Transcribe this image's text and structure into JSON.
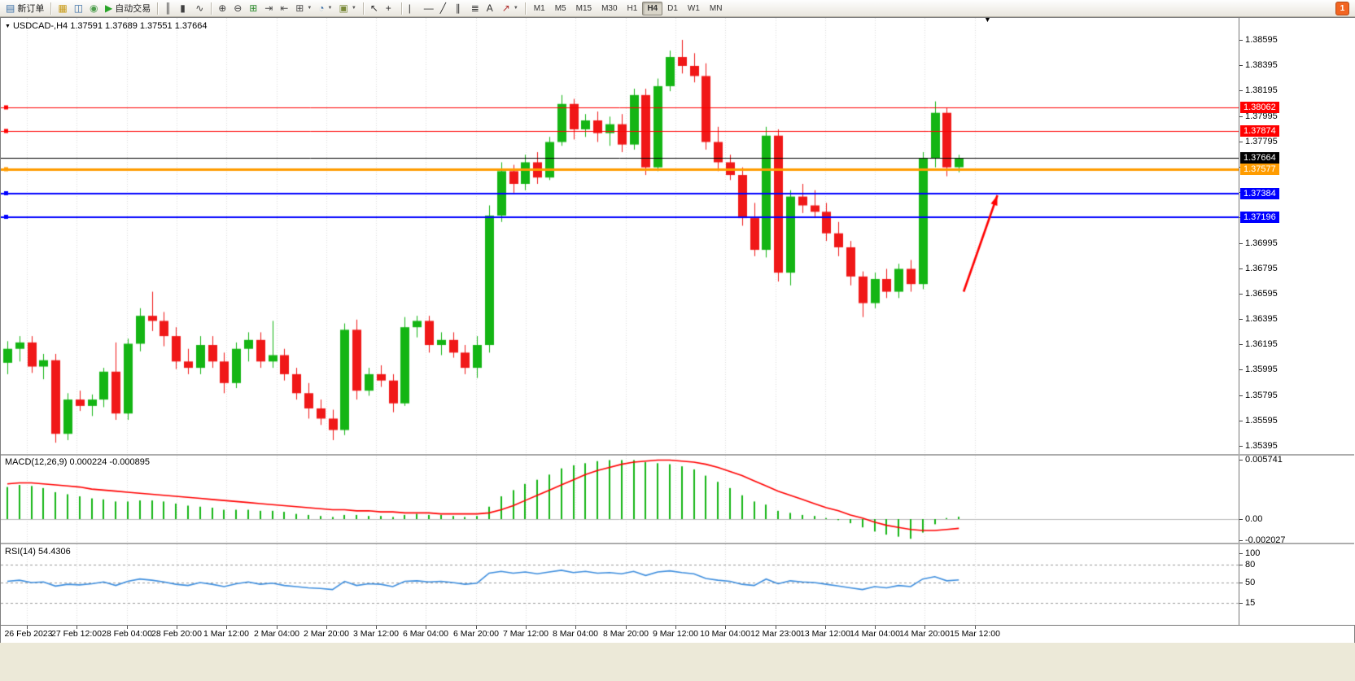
{
  "toolbar": {
    "items": [
      {
        "type": "btn",
        "name": "new-order-button",
        "icon": "new-order-icon",
        "glyph": "▤",
        "color": "#3A6EA5",
        "label": "新订单"
      },
      {
        "type": "sep"
      },
      {
        "type": "btn",
        "name": "market-watch-button",
        "icon": "market-watch-icon",
        "glyph": "▦",
        "color": "#C79810"
      },
      {
        "type": "btn",
        "name": "data-window-button",
        "icon": "data-window-icon",
        "glyph": "◫",
        "color": "#3A6EA5"
      },
      {
        "type": "btn",
        "name": "expert-advisors-button",
        "icon": "expert-advisors-icon",
        "glyph": "◉",
        "color": "#4D9E4D"
      },
      {
        "type": "btn",
        "name": "autotrading-button",
        "icon": "autotrading-play-icon",
        "glyph": "▶",
        "color": "#28A428",
        "label": "自动交易"
      },
      {
        "type": "sep"
      },
      {
        "type": "btn",
        "name": "bar-chart-button",
        "icon": "bar-chart-icon",
        "glyph": "║",
        "color": "#404040"
      },
      {
        "type": "btn",
        "name": "candlestick-chart-button",
        "icon": "candlestick-icon",
        "glyph": "▮",
        "color": "#404040"
      },
      {
        "type": "btn",
        "name": "line-chart-button",
        "icon": "line-chart-icon",
        "glyph": "∿",
        "color": "#404040"
      },
      {
        "type": "sep"
      },
      {
        "type": "btn",
        "name": "zoom-in-button",
        "icon": "zoom-in-icon",
        "glyph": "⊕",
        "color": "#404040"
      },
      {
        "type": "btn",
        "name": "zoom-out-button",
        "icon": "zoom-out-icon",
        "glyph": "⊖",
        "color": "#404040"
      },
      {
        "type": "btn",
        "name": "tile-windows-button",
        "icon": "tile-windows-icon",
        "glyph": "⊞",
        "color": "#2E8B2E"
      },
      {
        "type": "btn",
        "name": "auto-scroll-button",
        "icon": "auto-scroll-icon",
        "glyph": "⇥",
        "color": "#505050"
      },
      {
        "type": "btn",
        "name": "chart-shift-button",
        "icon": "chart-shift-icon",
        "glyph": "⇤",
        "color": "#505050"
      },
      {
        "type": "btn",
        "name": "new-chart-button",
        "icon": "new-chart-icon",
        "glyph": "⊞",
        "color": "#505050",
        "caret": true
      },
      {
        "type": "btn",
        "name": "period-button",
        "icon": "clock-icon",
        "glyph": "◔",
        "color": "#3A6EA5",
        "caret": true
      },
      {
        "type": "btn",
        "name": "template-button",
        "icon": "template-icon",
        "glyph": "▣",
        "color": "#7A8A3A",
        "caret": true
      },
      {
        "type": "sep"
      },
      {
        "type": "btn",
        "name": "cursor-button",
        "icon": "cursor-icon",
        "glyph": "↖",
        "color": "#303030"
      },
      {
        "type": "btn",
        "name": "crosshair-button",
        "icon": "crosshair-icon",
        "glyph": "+",
        "color": "#303030"
      },
      {
        "type": "sep"
      },
      {
        "type": "btn",
        "name": "vertical-line-button",
        "icon": "vertical-line-icon",
        "glyph": "|",
        "color": "#303030"
      },
      {
        "type": "btn",
        "name": "horizontal-line-button",
        "icon": "horizontal-line-icon",
        "glyph": "—",
        "color": "#303030"
      },
      {
        "type": "btn",
        "name": "trendline-button",
        "icon": "trendline-icon",
        "glyph": "╱",
        "color": "#303030"
      },
      {
        "type": "btn",
        "name": "channel-button",
        "icon": "channel-icon",
        "glyph": "∥",
        "color": "#303030"
      },
      {
        "type": "btn",
        "name": "fibonacci-button",
        "icon": "fibonacci-icon",
        "glyph": "≣",
        "color": "#303030"
      },
      {
        "type": "btn",
        "name": "text-button",
        "icon": "text-icon",
        "glyph": "A",
        "color": "#303030"
      },
      {
        "type": "btn",
        "name": "arrows-button",
        "icon": "arrow-symbol-icon",
        "glyph": "↗",
        "color": "#B03030",
        "caret": true
      },
      {
        "type": "sep"
      }
    ],
    "timeframes": [
      {
        "label": "M1"
      },
      {
        "label": "M5"
      },
      {
        "label": "M15"
      },
      {
        "label": "M30"
      },
      {
        "label": "H1"
      },
      {
        "label": "H4",
        "active": true
      },
      {
        "label": "D1"
      },
      {
        "label": "W1"
      },
      {
        "label": "MN"
      }
    ],
    "alert_badge": {
      "label": "1",
      "bg": "#F26522"
    }
  },
  "chart": {
    "menu_icon": "▼",
    "shift_marker_icon": "▼",
    "title": {
      "symbol": "USDCAD-,H4",
      "ohlc": "1.37591 1.37689 1.37551 1.37664"
    }
  },
  "indicators": {
    "macd_label": "MACD(12,26,9) 0.000224 -0.000895",
    "rsi_label": "RSI(14) 54.4306"
  },
  "chart_data": {
    "type": "candlestick",
    "symbol": "USDCAD",
    "timeframe": "H4",
    "price_axis_ticks": [
      "1.38595",
      "1.38395",
      "1.38195",
      "1.37995",
      "1.37795",
      "1.37595",
      "1.37395",
      "1.37195",
      "1.36995",
      "1.36795",
      "1.36595",
      "1.36395",
      "1.36195",
      "1.35995",
      "1.35795",
      "1.35595",
      "1.35395"
    ],
    "time_labels": [
      "26 Feb 2023",
      "27 Feb 12:00",
      "28 Feb 04:00",
      "28 Feb 20:00",
      "1 Mar 12:00",
      "2 Mar 04:00",
      "2 Mar 20:00",
      "3 Mar 12:00",
      "6 Mar 04:00",
      "6 Mar 20:00",
      "7 Mar 12:00",
      "8 Mar 04:00",
      "8 Mar 20:00",
      "9 Mar 12:00",
      "10 Mar 04:00",
      "12 Mar 23:00",
      "13 Mar 12:00",
      "14 Mar 04:00",
      "14 Mar 20:00",
      "15 Mar 12:00"
    ],
    "candles": [
      [
        1.3605,
        1.3622,
        1.3596,
        1.3616
      ],
      [
        1.3616,
        1.3626,
        1.3606,
        1.3621
      ],
      [
        1.3621,
        1.3626,
        1.3597,
        1.3602
      ],
      [
        1.3602,
        1.3612,
        1.3592,
        1.3607
      ],
      [
        1.3607,
        1.3612,
        1.3542,
        1.3549
      ],
      [
        1.3549,
        1.3581,
        1.3544,
        1.3576
      ],
      [
        1.3576,
        1.3583,
        1.3567,
        1.3571
      ],
      [
        1.3571,
        1.358,
        1.3563,
        1.3576
      ],
      [
        1.3576,
        1.3601,
        1.357,
        1.3598
      ],
      [
        1.3598,
        1.3621,
        1.356,
        1.3565
      ],
      [
        1.3565,
        1.3624,
        1.356,
        1.362
      ],
      [
        1.362,
        1.3648,
        1.3614,
        1.3642
      ],
      [
        1.3642,
        1.3661,
        1.363,
        1.3638
      ],
      [
        1.3638,
        1.3645,
        1.3618,
        1.3626
      ],
      [
        1.3626,
        1.3633,
        1.36,
        1.3606
      ],
      [
        1.3606,
        1.3616,
        1.3596,
        1.3601
      ],
      [
        1.3601,
        1.3626,
        1.3596,
        1.3619
      ],
      [
        1.3619,
        1.3626,
        1.3601,
        1.3606
      ],
      [
        1.3606,
        1.3613,
        1.3581,
        1.3589
      ],
      [
        1.3589,
        1.3621,
        1.3585,
        1.3616
      ],
      [
        1.3616,
        1.3629,
        1.3606,
        1.3623
      ],
      [
        1.3623,
        1.3629,
        1.3601,
        1.3606
      ],
      [
        1.3606,
        1.3638,
        1.3601,
        1.3611
      ],
      [
        1.3611,
        1.3616,
        1.3591,
        1.3596
      ],
      [
        1.3596,
        1.3601,
        1.3576,
        1.3581
      ],
      [
        1.3581,
        1.3589,
        1.3561,
        1.3569
      ],
      [
        1.3569,
        1.3576,
        1.3556,
        1.3561
      ],
      [
        1.3561,
        1.3568,
        1.3544,
        1.3552
      ],
      [
        1.3552,
        1.3636,
        1.3548,
        1.3631
      ],
      [
        1.3631,
        1.3639,
        1.3576,
        1.3583
      ],
      [
        1.3583,
        1.3601,
        1.3579,
        1.3596
      ],
      [
        1.3596,
        1.3603,
        1.3586,
        1.3591
      ],
      [
        1.3591,
        1.3596,
        1.3566,
        1.3573
      ],
      [
        1.3573,
        1.3641,
        1.3571,
        1.3633
      ],
      [
        1.3633,
        1.3642,
        1.3625,
        1.3638
      ],
      [
        1.3638,
        1.3642,
        1.3613,
        1.3619
      ],
      [
        1.3619,
        1.3629,
        1.3611,
        1.3623
      ],
      [
        1.3623,
        1.3629,
        1.3609,
        1.3613
      ],
      [
        1.3613,
        1.3619,
        1.3596,
        1.3601
      ],
      [
        1.3601,
        1.3626,
        1.3593,
        1.3619
      ],
      [
        1.3619,
        1.3729,
        1.3613,
        1.3721
      ],
      [
        1.3721,
        1.3763,
        1.3716,
        1.3756
      ],
      [
        1.3756,
        1.3761,
        1.3739,
        1.3746
      ],
      [
        1.3746,
        1.3769,
        1.3741,
        1.3763
      ],
      [
        1.3763,
        1.3771,
        1.3746,
        1.3751
      ],
      [
        1.3751,
        1.3783,
        1.3749,
        1.3779
      ],
      [
        1.3779,
        1.3816,
        1.3776,
        1.3809
      ],
      [
        1.3809,
        1.3813,
        1.3781,
        1.3789
      ],
      [
        1.3789,
        1.3801,
        1.3783,
        1.3796
      ],
      [
        1.3796,
        1.3803,
        1.3779,
        1.3786
      ],
      [
        1.3786,
        1.3799,
        1.3776,
        1.3793
      ],
      [
        1.3793,
        1.3801,
        1.3771,
        1.3777
      ],
      [
        1.3777,
        1.3821,
        1.3773,
        1.3816
      ],
      [
        1.3816,
        1.3821,
        1.3753,
        1.3759
      ],
      [
        1.3759,
        1.3829,
        1.3756,
        1.3823
      ],
      [
        1.3823,
        1.3851,
        1.3819,
        1.3846
      ],
      [
        1.3846,
        1.38595,
        1.3833,
        1.3839
      ],
      [
        1.3839,
        1.3849,
        1.3826,
        1.3831
      ],
      [
        1.3831,
        1.3841,
        1.3773,
        1.3779
      ],
      [
        1.3779,
        1.3791,
        1.3756,
        1.3763
      ],
      [
        1.3763,
        1.3769,
        1.3749,
        1.3753
      ],
      [
        1.3753,
        1.3759,
        1.3713,
        1.3719
      ],
      [
        1.3719,
        1.3731,
        1.3689,
        1.3694
      ],
      [
        1.3694,
        1.3791,
        1.3688,
        1.3784
      ],
      [
        1.3784,
        1.3789,
        1.3669,
        1.3676
      ],
      [
        1.3676,
        1.3741,
        1.3666,
        1.3736
      ],
      [
        1.3736,
        1.3746,
        1.3723,
        1.3729
      ],
      [
        1.3729,
        1.3741,
        1.3719,
        1.3724
      ],
      [
        1.3724,
        1.3731,
        1.3701,
        1.3707
      ],
      [
        1.3707,
        1.3716,
        1.3689,
        1.3696
      ],
      [
        1.3696,
        1.3701,
        1.3666,
        1.3673
      ],
      [
        1.3673,
        1.3677,
        1.3641,
        1.3652
      ],
      [
        1.3652,
        1.3676,
        1.3648,
        1.3671
      ],
      [
        1.3671,
        1.3679,
        1.3656,
        1.3661
      ],
      [
        1.3661,
        1.3683,
        1.3656,
        1.3679
      ],
      [
        1.3679,
        1.3686,
        1.3661,
        1.3667
      ],
      [
        1.3667,
        1.3771,
        1.3663,
        1.3766
      ],
      [
        1.3766,
        1.3811,
        1.3759,
        1.3802
      ],
      [
        1.3802,
        1.3806,
        1.3752,
        1.3759
      ],
      [
        1.37591,
        1.37689,
        1.37551,
        1.37664
      ]
    ],
    "h_lines": [
      {
        "price": 1.38062,
        "color": "#FF0000",
        "width": 1,
        "label": "1.38062"
      },
      {
        "price": 1.37874,
        "color": "#FF0000",
        "width": 1,
        "label": "1.37874"
      },
      {
        "price": 1.37664,
        "color": "#000000",
        "width": 1,
        "label": "1.37664",
        "current": true
      },
      {
        "price": 1.37577,
        "color": "#FF9C00",
        "width": 3,
        "label": "1.37577"
      },
      {
        "price": 1.37384,
        "color": "#0000FF",
        "width": 2,
        "label": "1.37384"
      },
      {
        "price": 1.37196,
        "color": "#0000FF",
        "width": 2,
        "label": "1.37196"
      }
    ],
    "current_price": 1.37664,
    "macd": {
      "hist": [
        0.0031,
        0.0033,
        0.0032,
        0.003,
        0.0026,
        0.0024,
        0.0022,
        0.002,
        0.0019,
        0.0017,
        0.0017,
        0.0018,
        0.0018,
        0.0017,
        0.0015,
        0.0013,
        0.0012,
        0.0011,
        0.0009,
        0.0009,
        0.0009,
        0.0008,
        0.0008,
        0.0007,
        0.0005,
        0.0004,
        0.0003,
        0.0002,
        0.0004,
        0.0004,
        0.0003,
        0.0003,
        0.0002,
        0.0004,
        0.0005,
        0.0004,
        0.0004,
        0.0003,
        0.0002,
        0.0003,
        0.0012,
        0.0022,
        0.0028,
        0.0034,
        0.0038,
        0.0043,
        0.0049,
        0.0052,
        0.0054,
        0.0056,
        0.0057,
        0.0057,
        0.0057,
        0.0055,
        0.0054,
        0.0053,
        0.0051,
        0.0048,
        0.0042,
        0.0036,
        0.003,
        0.0023,
        0.0017,
        0.0014,
        0.0008,
        0.0006,
        0.0004,
        0.0003,
        0.0001,
        -0.0001,
        -0.0004,
        -0.0008,
        -0.0012,
        -0.0015,
        -0.0017,
        -0.0019,
        -0.0013,
        -0.0005,
        0.0001,
        0.000224
      ],
      "signal": [
        0.0034,
        0.0035,
        0.0035,
        0.0034,
        0.0033,
        0.0032,
        0.0031,
        0.0029,
        0.0028,
        0.0027,
        0.0026,
        0.0025,
        0.0024,
        0.0023,
        0.0022,
        0.0021,
        0.002,
        0.0019,
        0.0018,
        0.0017,
        0.0016,
        0.0015,
        0.0014,
        0.0013,
        0.0012,
        0.0011,
        0.001,
        0.0009,
        0.0009,
        0.0008,
        0.0008,
        0.0007,
        0.0007,
        0.0006,
        0.0006,
        0.0006,
        0.0005,
        0.0005,
        0.0005,
        0.0005,
        0.0006,
        0.0009,
        0.0013,
        0.0018,
        0.0023,
        0.0028,
        0.0033,
        0.0038,
        0.0043,
        0.0047,
        0.005,
        0.0053,
        0.0055,
        0.0056,
        0.0057,
        0.0057,
        0.0056,
        0.0055,
        0.0053,
        0.005,
        0.0046,
        0.0042,
        0.0037,
        0.0032,
        0.0027,
        0.0023,
        0.0019,
        0.0015,
        0.0011,
        0.0008,
        0.0004,
        0.0001,
        -0.0003,
        -0.0006,
        -0.0008,
        -0.001,
        -0.0011,
        -0.0011,
        -0.001,
        -0.000895
      ],
      "axis_labels": [
        "0.005741",
        "0.00",
        "-0.002027"
      ],
      "axis_values": [
        0.005741,
        0,
        -0.002027
      ],
      "current_values": [
        0.000224,
        -0.000895
      ]
    },
    "rsi": {
      "values": [
        52,
        54,
        50,
        51,
        44,
        47,
        46,
        48,
        51,
        45,
        52,
        56,
        54,
        51,
        47,
        45,
        50,
        47,
        43,
        48,
        51,
        47,
        49,
        45,
        43,
        41,
        40,
        38,
        52,
        45,
        48,
        47,
        43,
        52,
        53,
        51,
        52,
        50,
        47,
        49,
        66,
        69,
        66,
        68,
        65,
        68,
        71,
        67,
        69,
        66,
        67,
        65,
        69,
        62,
        68,
        70,
        67,
        65,
        57,
        54,
        52,
        47,
        45,
        56,
        48,
        53,
        51,
        50,
        47,
        44,
        41,
        38,
        43,
        41,
        45,
        43,
        56,
        60,
        53,
        54.4306
      ],
      "levels": [
        80,
        50,
        15
      ],
      "axis_labels": [
        "100",
        "80",
        "50",
        "15"
      ],
      "axis_values": [
        100,
        80,
        50,
        15
      ],
      "current_value": 54.4306
    },
    "annotations": [
      {
        "type": "arrow",
        "color": "#FF0000",
        "from": {
          "bar": 79.4,
          "price": 1.3661
        },
        "to": {
          "bar": 82.2,
          "price": 1.3737
        }
      }
    ],
    "colors": {
      "up": "#14B514",
      "down": "#F01818",
      "macd_hist": "#14B514",
      "macd_signal": "#FF0000",
      "rsi_line": "#3E8EDE",
      "grid": "#DDDDDD",
      "level_dash": "#9A9A9A"
    }
  }
}
